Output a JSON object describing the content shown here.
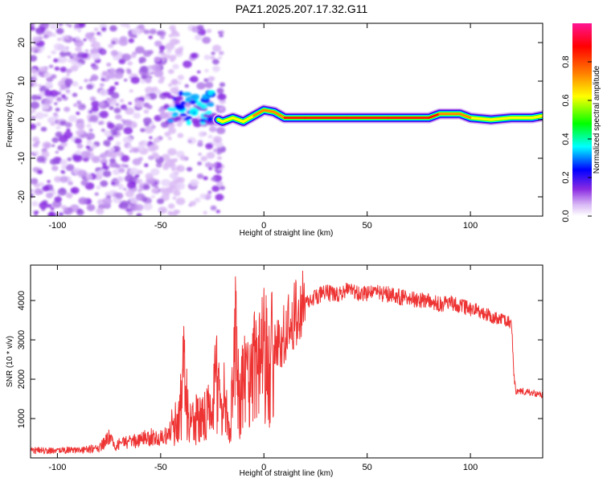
{
  "title": "PAZ1.2025.207.17.32.G11",
  "chart_data": [
    {
      "type": "heatmap",
      "xlabel": "Height of straight line (km)",
      "ylabel": "Frequency (Hz)",
      "xlim": [
        -113,
        135
      ],
      "ylim": [
        -25,
        25
      ],
      "xticks": [
        -100,
        -50,
        0,
        50,
        100
      ],
      "yticks": [
        -20,
        -10,
        0,
        10,
        20
      ],
      "colorbar": {
        "label": "Normalized spectral amplitude",
        "range": [
          0,
          1
        ],
        "ticks": [
          0.0,
          0.2,
          0.4,
          0.6,
          0.8
        ],
        "colors": [
          "#ffffff",
          "#d9b8f5",
          "#8a2be2",
          "#0000ff",
          "#00ffff",
          "#00ff00",
          "#ffff00",
          "#ff8000",
          "#ff0000",
          "#ff1493"
        ]
      },
      "ridge": {
        "x": [
          -22,
          -20,
          -15,
          -10,
          -5,
          0,
          5,
          10,
          20,
          40,
          60,
          80,
          85,
          90,
          95,
          100,
          110,
          120,
          130,
          135
        ],
        "frequency": [
          0,
          -0.5,
          0.5,
          -0.5,
          1,
          2.5,
          2,
          0.5,
          0.5,
          0.5,
          0.5,
          0.5,
          1.5,
          1.5,
          1.5,
          0.5,
          0,
          0.5,
          0.5,
          1
        ],
        "amplitude": [
          0.5,
          0.6,
          0.55,
          0.55,
          0.6,
          0.8,
          0.75,
          0.8,
          0.8,
          0.85,
          0.85,
          0.9,
          0.8,
          0.7,
          0.75,
          0.7,
          0.65,
          0.55,
          0.5,
          0.5
        ]
      }
    },
    {
      "type": "line",
      "xlabel": "Height of straight line (km)",
      "ylabel": "SNR (10 * v/v)",
      "xlim": [
        -113,
        135
      ],
      "ylim": [
        0,
        4900
      ],
      "xticks": [
        -100,
        -50,
        0,
        50,
        100
      ],
      "yticks": [
        1000,
        2000,
        3000,
        4000
      ],
      "color": "#ee3333",
      "series": [
        {
          "x": [
            -113,
            -105,
            -100,
            -95,
            -90,
            -85,
            -80,
            -77,
            -75,
            -72,
            -70,
            -65,
            -60,
            -55,
            -50,
            -47,
            -45,
            -42,
            -40,
            -39,
            -38,
            -35,
            -32,
            -30,
            -27,
            -25,
            -23,
            -21,
            -19,
            -17,
            -15,
            -14,
            -13,
            -12,
            -11,
            -10,
            -8,
            -6,
            -4,
            -2,
            0,
            2,
            5,
            8,
            10,
            15,
            20,
            25,
            30,
            35,
            40,
            45,
            50,
            55,
            60,
            65,
            70,
            75,
            80,
            85,
            90,
            95,
            100,
            105,
            110,
            115,
            120,
            121,
            122,
            125,
            130,
            135
          ],
          "y": [
            200,
            180,
            170,
            200,
            190,
            220,
            250,
            400,
            500,
            300,
            350,
            400,
            450,
            550,
            500,
            600,
            700,
            900,
            1400,
            2700,
            1500,
            800,
            1000,
            900,
            1100,
            1000,
            2200,
            1000,
            1500,
            600,
            1800,
            4000,
            2500,
            1500,
            1400,
            2000,
            1700,
            2200,
            2500,
            2300,
            2600,
            2300,
            2700,
            2900,
            3200,
            3600,
            3900,
            4100,
            4200,
            4150,
            4250,
            4200,
            4150,
            4200,
            4150,
            4100,
            4050,
            4000,
            4000,
            3900,
            3950,
            3850,
            3800,
            3700,
            3600,
            3550,
            3450,
            2100,
            1700,
            1700,
            1650,
            1600
          ]
        }
      ]
    }
  ]
}
